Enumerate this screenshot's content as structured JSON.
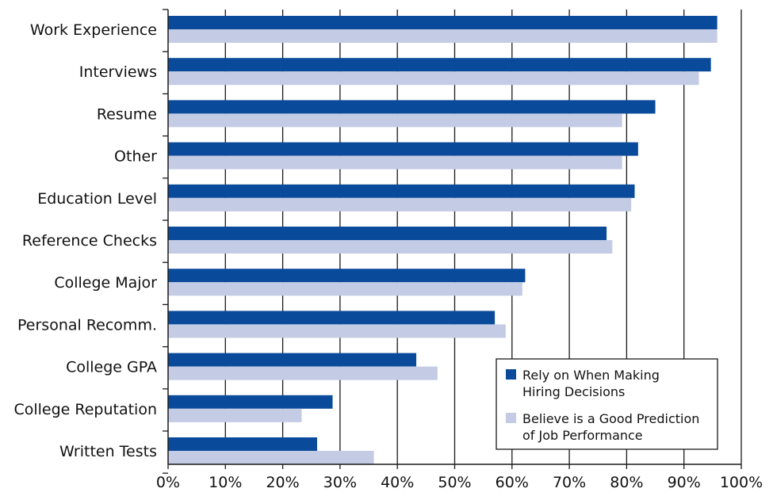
{
  "chart_data": {
    "type": "bar",
    "orientation": "horizontal",
    "categories": [
      "Work Experience",
      "Interviews",
      "Resume",
      "Other",
      "Education Level",
      "Reference Checks",
      "College Major",
      "Personal Recomm.",
      "College GPA",
      "College Reputation",
      "Written Tests"
    ],
    "series": [
      {
        "name": "Rely on When Making Hiring Decisions",
        "color": "#0a4a9a",
        "values": [
          95.8,
          94.7,
          85.0,
          82.0,
          81.4,
          76.5,
          62.3,
          57.0,
          43.3,
          28.7,
          26.0
        ]
      },
      {
        "name": "Believe is a Good Prediction of Job Performance",
        "color": "#c3cbe5",
        "values": [
          95.8,
          92.6,
          79.2,
          79.2,
          80.8,
          77.5,
          61.8,
          58.9,
          47.0,
          23.3,
          35.9
        ]
      }
    ],
    "xlim": [
      0,
      100
    ],
    "x_ticks": [
      "0%",
      "10%",
      "20%",
      "30%",
      "40%",
      "50%",
      "60%",
      "70%",
      "80%",
      "90%",
      "100%"
    ],
    "grid": "vertical",
    "legend": {
      "position": "bottom-right",
      "entries": [
        [
          "Rely on When Making",
          "Hiring Decisions"
        ],
        [
          "Believe is a Good Prediction",
          "of Job Performance"
        ]
      ]
    }
  }
}
